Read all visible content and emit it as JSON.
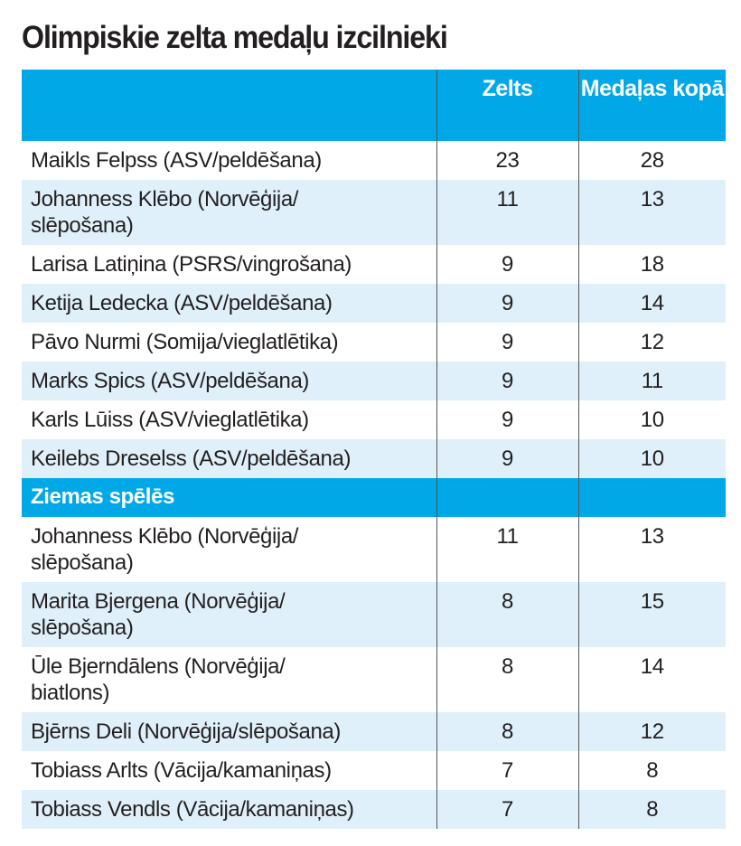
{
  "title": "Olimpiskie zelta medaļu izcilnieki",
  "columns": [
    "",
    "Zelts",
    "Medaļas kopā"
  ],
  "overall": [
    {
      "name": "Maikls Felpss (ASV/peldēšana)",
      "gold": "23",
      "total": "28"
    },
    {
      "name": "Johanness Klēbo (Norvēģija/\nslēpošana)",
      "gold": "11",
      "total": "13"
    },
    {
      "name": "Larisa Latiņina (PSRS/vingrošana)",
      "gold": "9",
      "total": "18"
    },
    {
      "name": "Ketija Ledecka (ASV/peldēšana)",
      "gold": "9",
      "total": "14"
    },
    {
      "name": "Pāvo Nurmi (Somija/vieglatlētika)",
      "gold": "9",
      "total": "12"
    },
    {
      "name": "Marks Spics (ASV/peldēšana)",
      "gold": "9",
      "total": "11"
    },
    {
      "name": "Karls Lūiss (ASV/vieglatlētika)",
      "gold": "9",
      "total": "10"
    },
    {
      "name": "Keilebs Dreselss (ASV/peldēšana)",
      "gold": "9",
      "total": "10"
    }
  ],
  "section_label": "Ziemas spēlēs",
  "winter": [
    {
      "name": "Johanness Klēbo (Norvēģija/\nslēpošana)",
      "gold": "11",
      "total": "13"
    },
    {
      "name": "Marita Bjergena (Norvēģija/\nslēpošana)",
      "gold": "8",
      "total": "15"
    },
    {
      "name": "Ūle Bjerndālens (Norvēģija/\nbiatlons)",
      "gold": "8",
      "total": "14"
    },
    {
      "name": "Bjērns Deli (Norvēģija/slēpošana)",
      "gold": "8",
      "total": "12"
    },
    {
      "name": "Tobiass Arlts (Vācija/kamaniņas)",
      "gold": "7",
      "total": "8"
    },
    {
      "name": "Tobiass Vendls (Vācija/kamaniņas)",
      "gold": "7",
      "total": "8"
    }
  ],
  "colors": {
    "header": "#00a8e8",
    "alt_row": "#dff0fa"
  }
}
